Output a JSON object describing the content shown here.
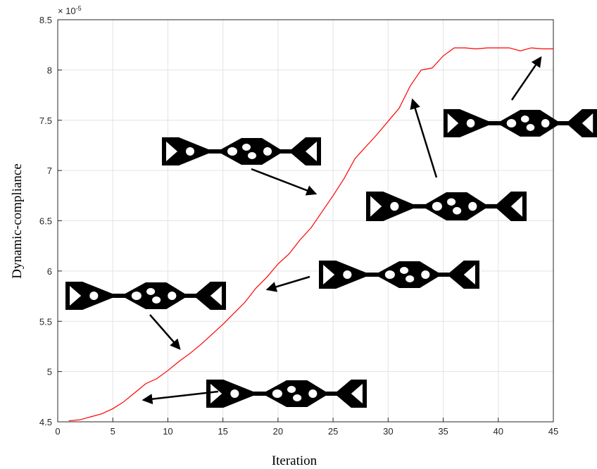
{
  "chart_data": {
    "type": "line",
    "x_label": "Iteration",
    "y_label": "Dynamic-compliance",
    "y_exponent": {
      "base": "× 10",
      "power": "-5"
    },
    "x": [
      1,
      2,
      3,
      4,
      5,
      6,
      7,
      8,
      9,
      10,
      11,
      12,
      13,
      14,
      15,
      16,
      17,
      18,
      19,
      20,
      21,
      22,
      23,
      24,
      25,
      26,
      27,
      28,
      29,
      30,
      31,
      32,
      33,
      34,
      35,
      36,
      37,
      38,
      39,
      40,
      41,
      42,
      43,
      44,
      45
    ],
    "series": [
      {
        "color": "#ff0000",
        "values": [
          4.51,
          4.52,
          4.55,
          4.58,
          4.63,
          4.7,
          4.79,
          4.88,
          4.93,
          5.01,
          5.1,
          5.18,
          5.27,
          5.37,
          5.47,
          5.58,
          5.69,
          5.83,
          5.94,
          6.07,
          6.17,
          6.31,
          6.43,
          6.59,
          6.75,
          6.92,
          7.12,
          7.24,
          7.36,
          7.49,
          7.62,
          7.84,
          8.0,
          8.02,
          8.14,
          8.22,
          8.22,
          8.21,
          8.22,
          8.22,
          8.22,
          8.19,
          8.22,
          8.21,
          8.21
        ]
      }
    ],
    "xlim": [
      0,
      45
    ],
    "xticks": [
      0,
      5,
      10,
      15,
      20,
      25,
      30,
      35,
      40,
      45
    ],
    "ylim": [
      4.5,
      8.5
    ],
    "yticks": [
      4.5,
      5,
      5.5,
      6,
      6.5,
      7,
      7.5,
      8,
      8.5
    ],
    "grid": true
  }
}
